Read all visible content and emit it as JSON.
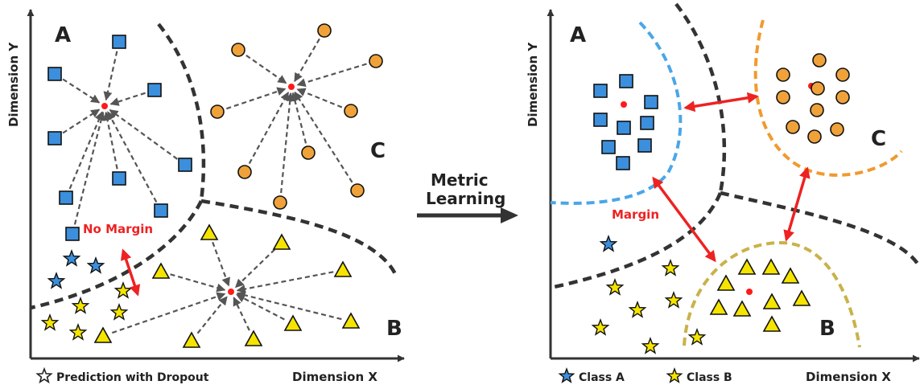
{
  "colors": {
    "class_a": "#3b8fdc",
    "class_b": "#f5e400",
    "class_c": "#f0a23a",
    "center": "#ff1a1a",
    "arrow_red": "#ee2222",
    "boundary": "#333333",
    "boundary_a": "#4aa6e8",
    "boundary_b": "#c9b24a",
    "boundary_c": "#f09a2e"
  },
  "left_panel": {
    "label_a": "A",
    "label_b": "B",
    "label_c": "C",
    "no_margin": "No Margin",
    "y_axis": "Dimension Y",
    "x_axis": "Dimension X",
    "legend_dropout": "Prediction with Dropout"
  },
  "middle": {
    "line1": "Metric",
    "line2": "Learning"
  },
  "right_panel": {
    "label_a": "A",
    "label_b": "B",
    "label_c": "C",
    "margin": "Margin",
    "y_axis": "Dimension Y",
    "x_axis": "Dimension X",
    "legend_class_a": "Class A",
    "legend_class_b": "Class B"
  },
  "icons": {
    "class_a": "blue-square-icon",
    "class_b": "yellow-triangle-icon",
    "class_c": "orange-circle-icon",
    "dropout_a": "blue-star-icon",
    "dropout_b": "yellow-star-icon",
    "legend_dropout": "outline-star-icon"
  }
}
